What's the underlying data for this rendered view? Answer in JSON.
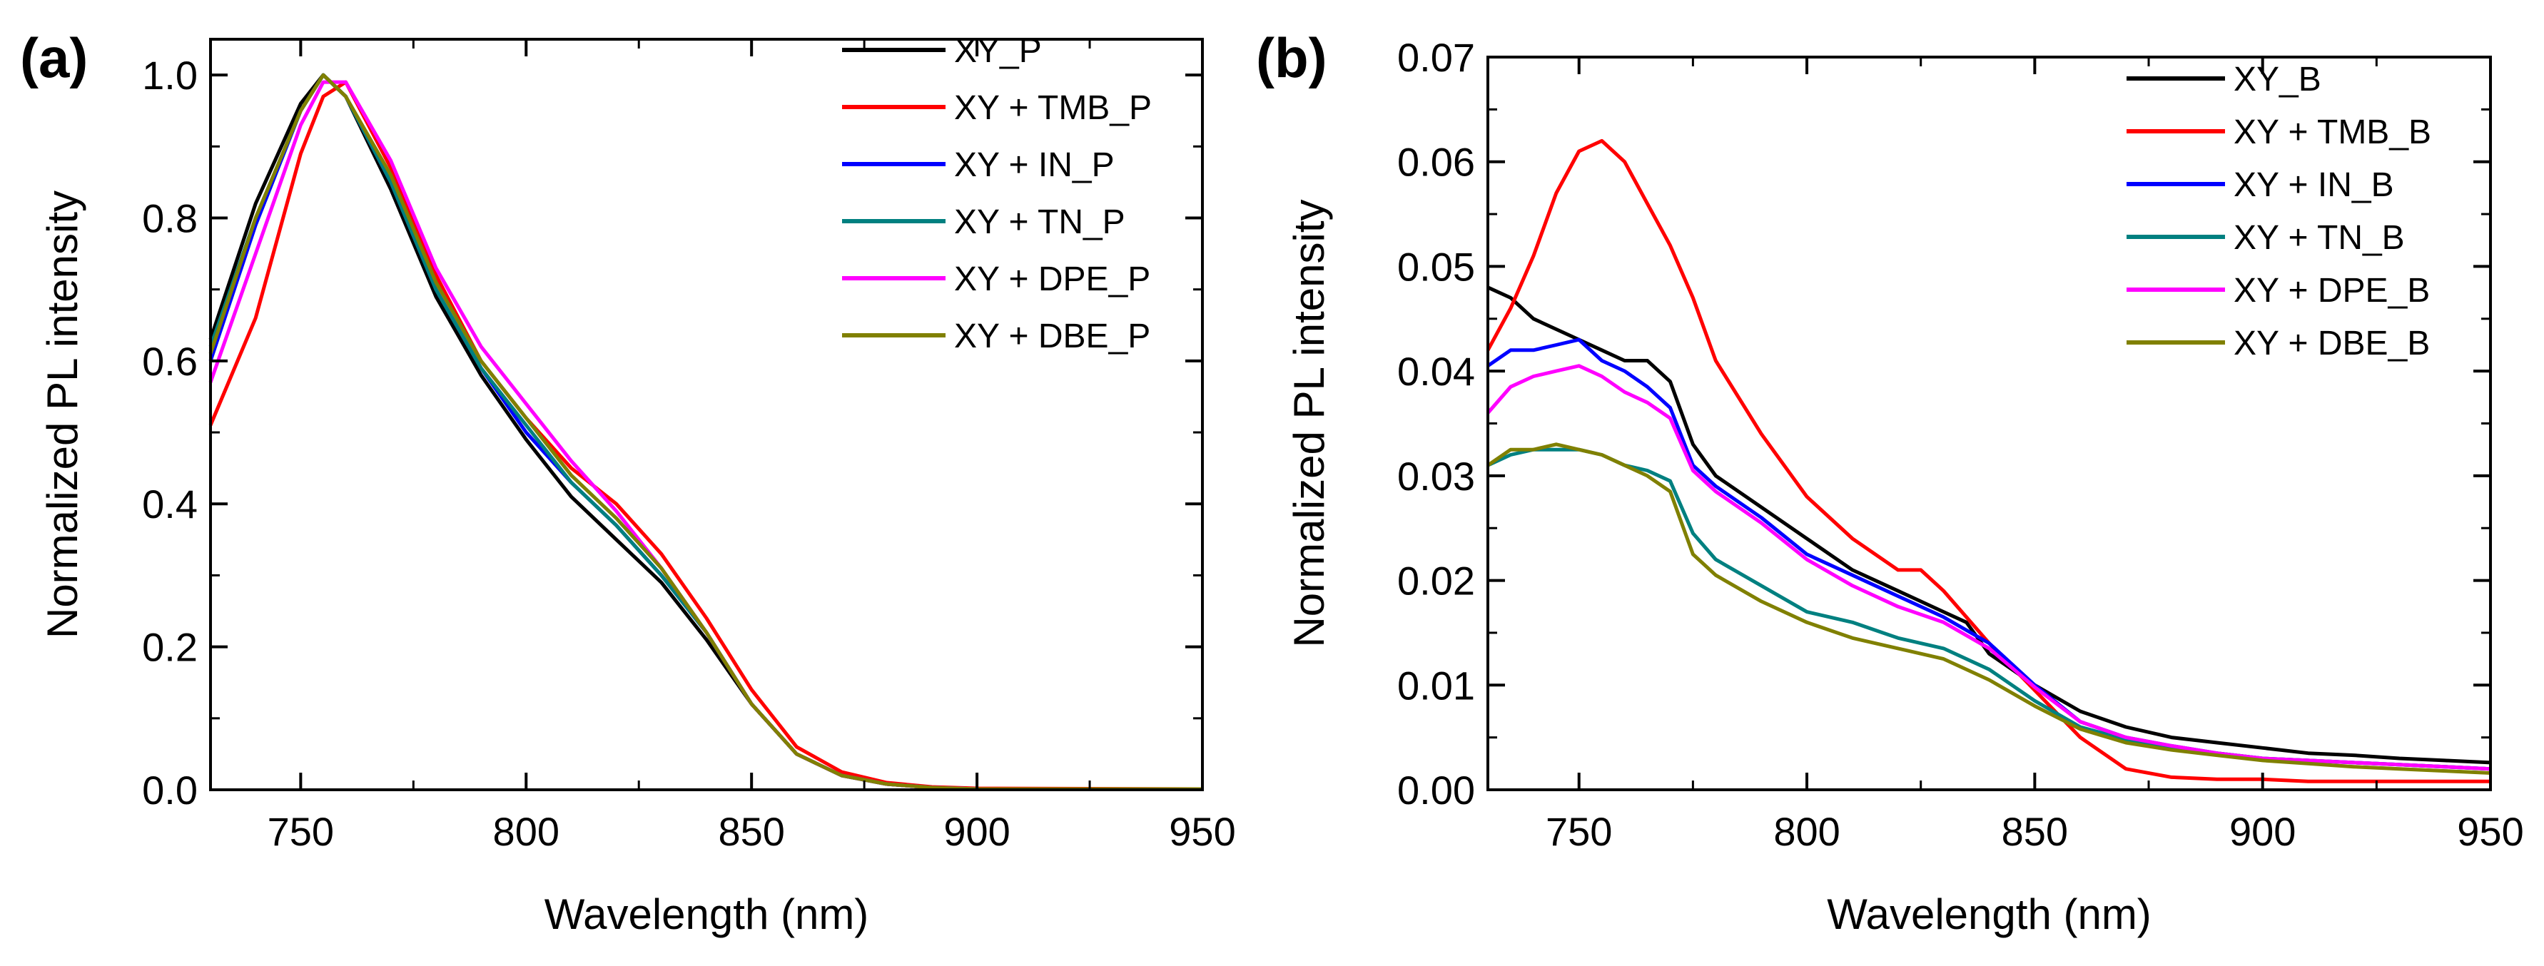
{
  "chart_data": [
    {
      "type": "line",
      "panel_label": "(a)",
      "xlabel": "Wavelength (nm)",
      "ylabel": "Normalized PL intensity",
      "xlim": [
        730,
        950
      ],
      "ylim": [
        0,
        1.05
      ],
      "xticks": [
        750,
        800,
        850,
        900,
        950
      ],
      "yticks": [
        0.0,
        0.2,
        0.4,
        0.6,
        0.8,
        1.0
      ],
      "ytick_labels": [
        "0.0",
        "0.2",
        "0.4",
        "0.6",
        "0.8",
        "1.0"
      ],
      "legend_position": "top-right",
      "series": [
        {
          "name": "XY_P",
          "color": "#000000",
          "x": [
            730,
            740,
            750,
            755,
            760,
            770,
            780,
            790,
            800,
            810,
            820,
            830,
            840,
            850,
            860,
            870,
            880,
            890,
            900,
            950
          ],
          "values": [
            0.63,
            0.82,
            0.96,
            1.0,
            0.97,
            0.84,
            0.69,
            0.58,
            0.49,
            0.41,
            0.35,
            0.29,
            0.21,
            0.12,
            0.05,
            0.02,
            0.008,
            0.003,
            0.001,
            0.001
          ]
        },
        {
          "name": "XY + TMB_P",
          "color": "#ff0000",
          "x": [
            730,
            740,
            750,
            755,
            760,
            770,
            780,
            790,
            800,
            810,
            820,
            830,
            840,
            850,
            860,
            870,
            880,
            890,
            900,
            950
          ],
          "values": [
            0.51,
            0.66,
            0.89,
            0.97,
            0.99,
            0.87,
            0.72,
            0.6,
            0.52,
            0.45,
            0.4,
            0.33,
            0.24,
            0.14,
            0.06,
            0.025,
            0.01,
            0.004,
            0.002,
            0.001
          ]
        },
        {
          "name": "XY + IN_P",
          "color": "#0000ff",
          "x": [
            730,
            740,
            750,
            755,
            760,
            770,
            780,
            790,
            800,
            810,
            820,
            830,
            840,
            850,
            860,
            870,
            880,
            890,
            900,
            950
          ],
          "values": [
            0.6,
            0.79,
            0.95,
            1.0,
            0.97,
            0.85,
            0.7,
            0.59,
            0.5,
            0.43,
            0.37,
            0.3,
            0.22,
            0.12,
            0.05,
            0.02,
            0.008,
            0.003,
            0.001,
            0.001
          ]
        },
        {
          "name": "XY + TN_P",
          "color": "#008080",
          "x": [
            730,
            740,
            750,
            755,
            760,
            770,
            780,
            790,
            800,
            810,
            820,
            830,
            840,
            850,
            860,
            870,
            880,
            890,
            900,
            950
          ],
          "values": [
            0.62,
            0.8,
            0.95,
            1.0,
            0.97,
            0.85,
            0.7,
            0.59,
            0.51,
            0.43,
            0.37,
            0.3,
            0.22,
            0.12,
            0.05,
            0.02,
            0.008,
            0.003,
            0.001,
            0.001
          ]
        },
        {
          "name": "XY + DPE_P",
          "color": "#ff00ff",
          "x": [
            730,
            740,
            750,
            755,
            760,
            770,
            780,
            790,
            800,
            810,
            820,
            830,
            840,
            850,
            860,
            870,
            880,
            890,
            900,
            950
          ],
          "values": [
            0.57,
            0.75,
            0.93,
            0.99,
            0.99,
            0.88,
            0.73,
            0.62,
            0.54,
            0.46,
            0.39,
            0.31,
            0.22,
            0.12,
            0.05,
            0.02,
            0.008,
            0.003,
            0.001,
            0.001
          ]
        },
        {
          "name": "XY + DBE_P",
          "color": "#808000",
          "x": [
            730,
            740,
            750,
            755,
            760,
            770,
            780,
            790,
            800,
            810,
            820,
            830,
            840,
            850,
            860,
            870,
            880,
            890,
            900,
            950
          ],
          "values": [
            0.61,
            0.8,
            0.95,
            1.0,
            0.97,
            0.86,
            0.71,
            0.6,
            0.52,
            0.44,
            0.38,
            0.31,
            0.22,
            0.12,
            0.05,
            0.02,
            0.008,
            0.003,
            0.001,
            0.001
          ]
        }
      ]
    },
    {
      "type": "line",
      "panel_label": "(b)",
      "xlabel": "Wavelength (nm)",
      "ylabel": "Normalized PL intensity",
      "xlim": [
        730,
        950
      ],
      "ylim": [
        0,
        0.07
      ],
      "xticks": [
        750,
        800,
        850,
        900,
        950
      ],
      "yticks": [
        0.0,
        0.01,
        0.02,
        0.03,
        0.04,
        0.05,
        0.06,
        0.07
      ],
      "ytick_labels": [
        "0.00",
        "0.01",
        "0.02",
        "0.03",
        "0.04",
        "0.05",
        "0.06",
        "0.07"
      ],
      "legend_position": "top-right",
      "series": [
        {
          "name": "XY_B",
          "color": "#000000",
          "x": [
            730,
            735,
            740,
            745,
            750,
            755,
            760,
            765,
            770,
            775,
            780,
            790,
            800,
            810,
            820,
            830,
            835,
            840,
            850,
            860,
            870,
            880,
            890,
            900,
            910,
            920,
            930,
            940,
            950
          ],
          "values": [
            0.048,
            0.047,
            0.045,
            0.044,
            0.043,
            0.042,
            0.041,
            0.041,
            0.039,
            0.033,
            0.03,
            0.027,
            0.024,
            0.021,
            0.019,
            0.017,
            0.016,
            0.013,
            0.01,
            0.0075,
            0.006,
            0.005,
            0.0045,
            0.004,
            0.0035,
            0.0033,
            0.003,
            0.0028,
            0.0026
          ]
        },
        {
          "name": "XY + TMB_B",
          "color": "#ff0000",
          "x": [
            730,
            735,
            740,
            745,
            750,
            755,
            760,
            765,
            770,
            775,
            780,
            790,
            800,
            810,
            820,
            825,
            830,
            840,
            850,
            860,
            870,
            880,
            890,
            900,
            910,
            920,
            930,
            940,
            950
          ],
          "values": [
            0.042,
            0.046,
            0.051,
            0.057,
            0.061,
            0.062,
            0.06,
            0.056,
            0.052,
            0.047,
            0.041,
            0.034,
            0.028,
            0.024,
            0.021,
            0.021,
            0.019,
            0.014,
            0.0095,
            0.005,
            0.002,
            0.0012,
            0.001,
            0.001,
            0.0008,
            0.0008,
            0.0008,
            0.0008,
            0.0008
          ]
        },
        {
          "name": "XY + IN_B",
          "color": "#0000ff",
          "x": [
            730,
            735,
            740,
            745,
            750,
            755,
            760,
            765,
            770,
            775,
            780,
            790,
            800,
            810,
            820,
            830,
            840,
            850,
            860,
            870,
            880,
            890,
            900,
            910,
            920,
            930,
            940,
            950
          ],
          "values": [
            0.0405,
            0.042,
            0.042,
            0.0425,
            0.043,
            0.041,
            0.04,
            0.0385,
            0.0365,
            0.031,
            0.029,
            0.026,
            0.0225,
            0.0205,
            0.0185,
            0.0165,
            0.014,
            0.01,
            0.0065,
            0.005,
            0.0042,
            0.0035,
            0.003,
            0.0028,
            0.0026,
            0.0024,
            0.0022,
            0.002
          ]
        },
        {
          "name": "XY + TN_B",
          "color": "#008080",
          "x": [
            730,
            735,
            740,
            745,
            750,
            755,
            760,
            765,
            770,
            775,
            780,
            790,
            800,
            810,
            820,
            830,
            840,
            850,
            860,
            870,
            880,
            890,
            900,
            910,
            920,
            930,
            940,
            950
          ],
          "values": [
            0.031,
            0.032,
            0.0325,
            0.0325,
            0.0325,
            0.032,
            0.031,
            0.0305,
            0.0295,
            0.0245,
            0.022,
            0.0195,
            0.017,
            0.016,
            0.0145,
            0.0135,
            0.0115,
            0.0085,
            0.006,
            0.0048,
            0.004,
            0.0035,
            0.003,
            0.0028,
            0.0026,
            0.0024,
            0.0022,
            0.002
          ]
        },
        {
          "name": "XY + DPE_B",
          "color": "#ff00ff",
          "x": [
            730,
            735,
            740,
            745,
            750,
            755,
            760,
            765,
            770,
            775,
            780,
            790,
            800,
            810,
            820,
            830,
            840,
            850,
            860,
            870,
            880,
            890,
            900,
            910,
            920,
            930,
            940,
            950
          ],
          "values": [
            0.036,
            0.0385,
            0.0395,
            0.04,
            0.0405,
            0.0395,
            0.038,
            0.037,
            0.0355,
            0.0305,
            0.0285,
            0.0255,
            0.022,
            0.0195,
            0.0175,
            0.016,
            0.0135,
            0.0098,
            0.0065,
            0.005,
            0.0042,
            0.0035,
            0.003,
            0.0028,
            0.0026,
            0.0024,
            0.0022,
            0.002
          ]
        },
        {
          "name": "XY + DBE_B",
          "color": "#808000",
          "x": [
            730,
            735,
            740,
            745,
            750,
            755,
            760,
            765,
            770,
            775,
            780,
            790,
            800,
            810,
            820,
            830,
            840,
            850,
            860,
            870,
            880,
            890,
            900,
            910,
            920,
            930,
            940,
            950
          ],
          "values": [
            0.031,
            0.0325,
            0.0325,
            0.033,
            0.0325,
            0.032,
            0.031,
            0.03,
            0.0285,
            0.0225,
            0.0205,
            0.018,
            0.016,
            0.0145,
            0.0135,
            0.0125,
            0.0105,
            0.008,
            0.0058,
            0.0045,
            0.0038,
            0.0033,
            0.0028,
            0.0025,
            0.0022,
            0.002,
            0.0018,
            0.0016
          ]
        }
      ]
    }
  ]
}
